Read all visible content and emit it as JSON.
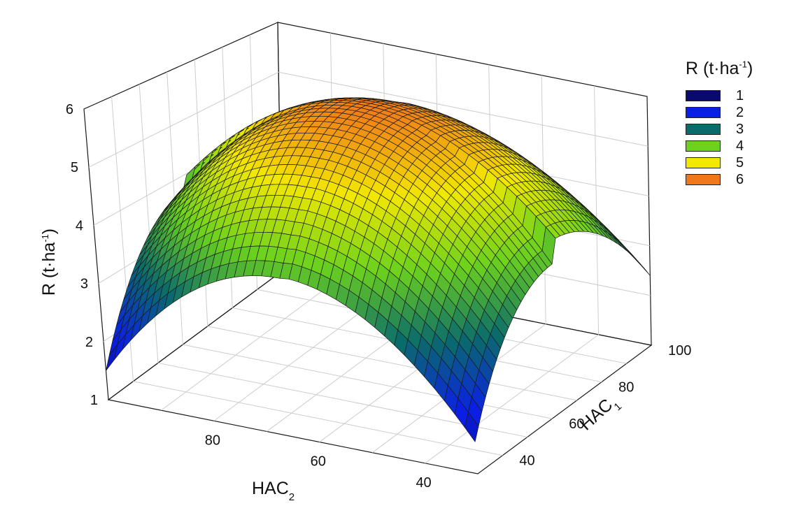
{
  "chart_data": {
    "type": "surface",
    "title": "",
    "x_axis": {
      "label": "HAC",
      "subscript": "1",
      "ticks": [
        40,
        60,
        80,
        100
      ],
      "range": [
        30,
        100
      ]
    },
    "y_axis": {
      "label": "HAC",
      "subscript": "2",
      "ticks": [
        80,
        60,
        40
      ],
      "range": [
        30,
        100
      ]
    },
    "z_axis": {
      "label": "R (t·ha",
      "superscript": "-1",
      "suffix": ")",
      "ticks": [
        1,
        2,
        3,
        4,
        5,
        6
      ],
      "range": [
        1,
        6
      ]
    },
    "surface": {
      "model": "quadratic",
      "peak": {
        "HAC1": 65,
        "HAC2": 65,
        "R": 5.95
      },
      "corner_values": [
        {
          "HAC1": 30,
          "HAC2": 100,
          "R": 1.5
        },
        {
          "HAC1": 30,
          "HAC2": 30,
          "R": 1.55
        },
        {
          "HAC1": 100,
          "HAC2": 30,
          "R": 2.4
        },
        {
          "HAC1": 100,
          "HAC2": 100,
          "R": 2.0
        }
      ],
      "grid": 40
    },
    "grid": true,
    "legend": {
      "title": "R (t·ha",
      "title_sup": "-1",
      "title_suffix": ")",
      "placement": "right",
      "items": [
        {
          "label": "1",
          "color": "#0a0a6e"
        },
        {
          "label": "2",
          "color": "#0a1fe6"
        },
        {
          "label": "3",
          "color": "#0a6b6b"
        },
        {
          "label": "4",
          "color": "#6cd21e"
        },
        {
          "label": "5",
          "color": "#f2e800"
        },
        {
          "label": "6",
          "color": "#f0781a"
        }
      ]
    }
  }
}
